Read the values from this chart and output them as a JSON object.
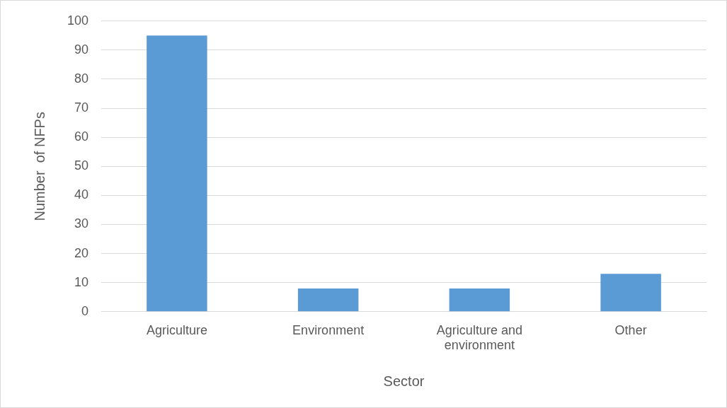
{
  "chart_data": {
    "type": "bar",
    "xlabel": "Sector",
    "ylabel": "Number  of NFPs",
    "categories": [
      "Agriculture",
      "Environment",
      "Agriculture and environment",
      "Other"
    ],
    "values": [
      95,
      8,
      8,
      13
    ],
    "color": "#5b9bd5",
    "ylim": [
      0,
      100
    ],
    "yticks": [
      0,
      10,
      20,
      30,
      40,
      50,
      60,
      70,
      80,
      90,
      100
    ],
    "grid": "y",
    "legend": false
  }
}
